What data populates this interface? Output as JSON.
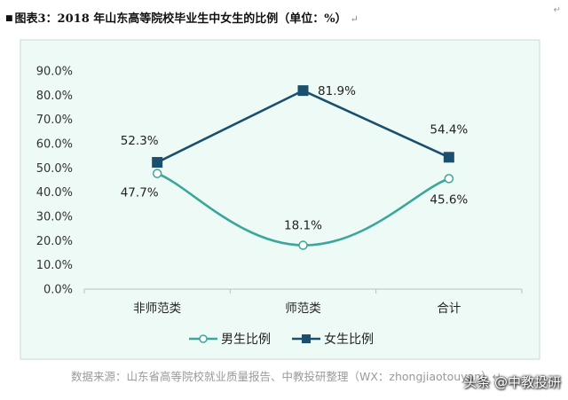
{
  "caption": {
    "text": "图表3：2018 年山东高等院校毕业生中女生的比例（单位：%）",
    "return_mark": "↵"
  },
  "corner_mark": "↵",
  "chart_data": {
    "type": "line",
    "categories": [
      "非师范类",
      "师范类",
      "合计"
    ],
    "series": [
      {
        "name": "男生比例",
        "values": [
          47.7,
          18.1,
          45.6
        ],
        "color": "#3aa79a",
        "marker": "circle-open",
        "smooth": true,
        "labels": [
          "47.7%",
          "18.1%",
          "45.6%"
        ]
      },
      {
        "name": "女生比例",
        "values": [
          52.3,
          81.9,
          54.4
        ],
        "color": "#1b4f6e",
        "marker": "square",
        "smooth": false,
        "labels": [
          "52.3%",
          "81.9%",
          "54.4%"
        ]
      }
    ],
    "yticks": [
      "0.0%",
      "10.0%",
      "20.0%",
      "30.0%",
      "40.0%",
      "50.0%",
      "60.0%",
      "70.0%",
      "80.0%",
      "90.0%"
    ],
    "ylim": [
      0,
      90
    ],
    "grid": false,
    "legend_position": "bottom",
    "plot_background": "#eefaf5"
  },
  "source": "数据来源：山东省高等院校就业质量报告、中教投研整理（WX：zhongjiaotouyan）↵",
  "watermark": "头条 @中教投研"
}
